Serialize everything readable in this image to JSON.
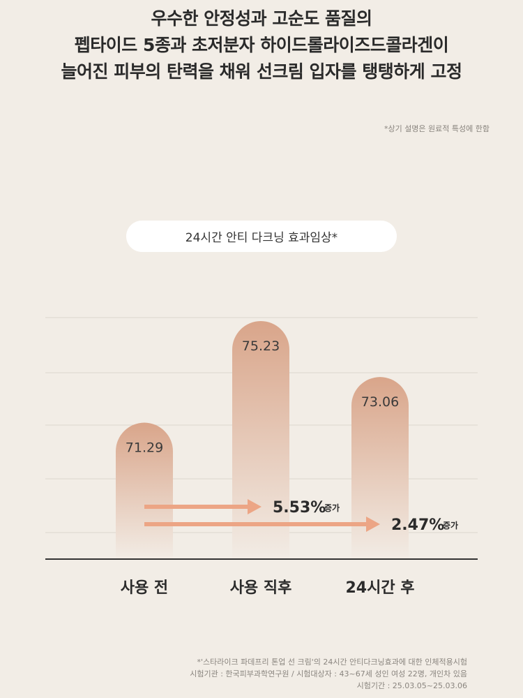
{
  "headline": [
    "우수한 안정성과 고순도 품질의",
    "펩타이드 5종과 초저분자 하이드롤라이즈드콜라겐이",
    "늘어진 피부의 탄력을 채워 선크림 입자를 탱탱하게 고정"
  ],
  "disclaimer": "*상기 설명은 원료적 특성에 한함",
  "test_title": "24시간 안티 다크닝 효과임상*",
  "chart_data": {
    "type": "bar",
    "categories": [
      "사용 전",
      "사용 직후",
      "24시간 후"
    ],
    "values": [
      71.29,
      75.23,
      73.06
    ],
    "value_labels": [
      "71.29",
      "75.23",
      "73.06"
    ],
    "increases": [
      {
        "from": "사용 전",
        "to": "사용 직후",
        "value": "5.53%",
        "suffix": "증가"
      },
      {
        "from": "사용 전",
        "to": "24시간 후",
        "value": "2.47%",
        "suffix": "증가"
      }
    ],
    "grid": true,
    "colors": {
      "bar_top": "#d9a58a",
      "bar_bottom": "#f2ece5",
      "arrow": "#eca585",
      "grid": "#dcd6cf",
      "baseline": "#333333"
    }
  },
  "footnote": [
    "*'스타라이크 파데프리 톤업 선 크림'의 24시간 안티다크닝효과에 대한 인체적용시험",
    "시험기관 : 한국피부과학연구원 / 시험대상자 : 43~67세 성인 여성 22명, 개인차 있음",
    "시험기간 : 25.03.05~25.03.06"
  ]
}
